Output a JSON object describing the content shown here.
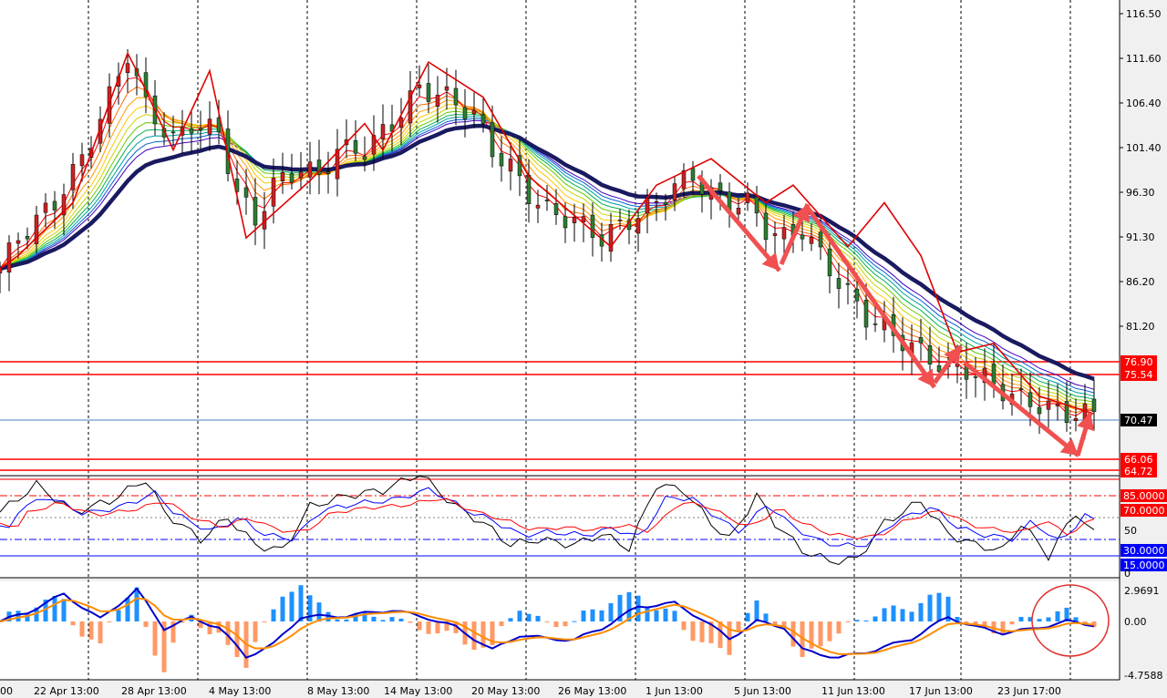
{
  "chart_data": {
    "type": "candlestick",
    "panels": {
      "price": {
        "ylim": [
          66.06,
          116.5
        ],
        "y_ticks": [
          "116.50",
          "111.60",
          "106.40",
          "101.40",
          "96.30",
          "91.30",
          "86.20",
          "81.20",
          "76.90",
          "75.54",
          "70.47",
          "66.06",
          "64.72"
        ],
        "current_price": "70.47",
        "horizontal_levels": [
          {
            "value": 76.9,
            "label": "76.90",
            "color": "#ff0000"
          },
          {
            "value": 75.54,
            "label": "75.54",
            "color": "#ff0000"
          },
          {
            "value": 66.06,
            "label": "66.06",
            "color": "#ff0000"
          },
          {
            "value": 64.72,
            "label": "64.72",
            "color": "#ff0000"
          }
        ],
        "bid_line": {
          "value": 70.47,
          "color": "#4a7fc0"
        },
        "ema_ribbon_colors": [
          "#ff0000",
          "#ff6a00",
          "#ff9a00",
          "#ffc800",
          "#c8d400",
          "#66c800",
          "#00b050",
          "#00a0a0",
          "#0060d0",
          "#4000c0"
        ],
        "slow_ma_color": "#1a1a60"
      },
      "stochastic": {
        "ylim": [
          0,
          100
        ],
        "levels": [
          {
            "value": 85,
            "label": "85.0000",
            "color": "#ff0000"
          },
          {
            "value": 70,
            "label": "70.0000",
            "color": "#ff0000"
          },
          {
            "value": 50,
            "label": "50",
            "color": "#808080"
          },
          {
            "value": 30,
            "label": "30.0000",
            "color": "#0000ff"
          },
          {
            "value": 15,
            "label": "15.0000",
            "color": "#0000ff"
          }
        ],
        "bottom_label": "0",
        "line_colors": [
          "#000000",
          "#0000ff",
          "#ff0000"
        ]
      },
      "macd": {
        "ylim": [
          -4.7588,
          2.9691
        ],
        "tick_labels": [
          "2.9691",
          "0.00",
          "-4.7588"
        ],
        "line_colors": [
          "#0000cc",
          "#ff8c00"
        ],
        "hist_pos_color": "#1e90ff",
        "hist_neg_color": "#ff9966"
      }
    },
    "x_tick_labels": [
      "00",
      "22 Apr 13:00",
      "28 Apr 13:00",
      "4 May 13:00",
      "8 May 13:00",
      "14 May 13:00",
      "20 May 13:00",
      "26 May 13:00",
      "1 Jun 13:00",
      "5 Jun 13:00",
      "11 Jun 13:00",
      "17 Jun 13:00",
      "23 Jun 17:00"
    ],
    "zigzag": [
      [
        0,
        87.5
      ],
      [
        2,
        89
      ],
      [
        8,
        95
      ],
      [
        14,
        112
      ],
      [
        15,
        110
      ],
      [
        19,
        101
      ],
      [
        23,
        110
      ],
      [
        27,
        91
      ],
      [
        34,
        97.5
      ],
      [
        40,
        104
      ],
      [
        42,
        101
      ],
      [
        47,
        111
      ],
      [
        53,
        107
      ],
      [
        58,
        98
      ],
      [
        67,
        90
      ],
      [
        72,
        97
      ],
      [
        78,
        100
      ],
      [
        84,
        95
      ],
      [
        87,
        97
      ],
      [
        93,
        90
      ],
      [
        97,
        95
      ],
      [
        101,
        89
      ],
      [
        105,
        78
      ],
      [
        109,
        79
      ],
      [
        114,
        73
      ],
      [
        120,
        71
      ]
    ],
    "close_series_knots": [
      [
        0,
        87.5
      ],
      [
        2,
        91
      ],
      [
        6,
        95
      ],
      [
        9,
        100
      ],
      [
        12,
        107
      ],
      [
        14,
        112
      ],
      [
        16,
        106
      ],
      [
        19,
        102
      ],
      [
        21,
        104
      ],
      [
        24,
        103
      ],
      [
        26,
        96
      ],
      [
        28,
        93
      ],
      [
        30,
        97
      ],
      [
        33,
        99
      ],
      [
        35,
        98
      ],
      [
        37,
        101
      ],
      [
        40,
        101
      ],
      [
        43,
        104
      ],
      [
        46,
        108
      ],
      [
        49,
        107
      ],
      [
        52,
        105
      ],
      [
        54,
        101
      ],
      [
        56,
        99
      ],
      [
        58,
        96
      ],
      [
        60,
        94
      ],
      [
        63,
        93
      ],
      [
        66,
        91
      ],
      [
        69,
        93
      ],
      [
        72,
        95
      ],
      [
        74,
        97
      ],
      [
        76,
        98
      ],
      [
        78,
        96
      ],
      [
        80,
        95
      ],
      [
        82,
        95
      ],
      [
        84,
        92
      ],
      [
        86,
        91
      ],
      [
        88,
        92
      ],
      [
        90,
        89
      ],
      [
        92,
        86
      ],
      [
        95,
        82
      ],
      [
        98,
        80
      ],
      [
        101,
        78
      ],
      [
        104,
        76
      ],
      [
        106,
        76
      ],
      [
        108,
        75
      ],
      [
        111,
        73
      ],
      [
        114,
        72
      ],
      [
        117,
        71
      ],
      [
        120,
        71
      ]
    ],
    "stoch_main_knots": [
      [
        0,
        55
      ],
      [
        4,
        80
      ],
      [
        6,
        68
      ],
      [
        8,
        55
      ],
      [
        12,
        65
      ],
      [
        16,
        85
      ],
      [
        18,
        55
      ],
      [
        22,
        30
      ],
      [
        25,
        50
      ],
      [
        28,
        25
      ],
      [
        31,
        20
      ],
      [
        34,
        60
      ],
      [
        38,
        70
      ],
      [
        42,
        75
      ],
      [
        46,
        90
      ],
      [
        50,
        60
      ],
      [
        53,
        45
      ],
      [
        56,
        25
      ],
      [
        59,
        30
      ],
      [
        63,
        25
      ],
      [
        66,
        35
      ],
      [
        69,
        22
      ],
      [
        72,
        80
      ],
      [
        75,
        75
      ],
      [
        78,
        45
      ],
      [
        80,
        30
      ],
      [
        83,
        70
      ],
      [
        85,
        45
      ],
      [
        88,
        20
      ],
      [
        91,
        10
      ],
      [
        94,
        12
      ],
      [
        97,
        45
      ],
      [
        101,
        65
      ],
      [
        104,
        35
      ],
      [
        107,
        25
      ],
      [
        110,
        20
      ],
      [
        112,
        45
      ],
      [
        115,
        15
      ],
      [
        118,
        55
      ],
      [
        120,
        35
      ]
    ],
    "macd_main_knots": [
      [
        0,
        0
      ],
      [
        3,
        0.8
      ],
      [
        7,
        2.4
      ],
      [
        11,
        0.2
      ],
      [
        15,
        2.8
      ],
      [
        18,
        -0.6
      ],
      [
        21,
        0.3
      ],
      [
        24,
        -0.5
      ],
      [
        27,
        -3.1
      ],
      [
        30,
        -2
      ],
      [
        33,
        0.4
      ],
      [
        38,
        0.5
      ],
      [
        43,
        1
      ],
      [
        47,
        0.3
      ],
      [
        50,
        -0.5
      ],
      [
        54,
        -2.5
      ],
      [
        57,
        -1.2
      ],
      [
        60,
        -1.5
      ],
      [
        63,
        -1.6
      ],
      [
        66,
        -0.6
      ],
      [
        70,
        1.3
      ],
      [
        74,
        1.6
      ],
      [
        77,
        0.2
      ],
      [
        80,
        -1.5
      ],
      [
        83,
        0
      ],
      [
        86,
        -0.5
      ],
      [
        88,
        -2.5
      ],
      [
        92,
        -3.2
      ],
      [
        96,
        -2.5
      ],
      [
        100,
        -1.5
      ],
      [
        104,
        0.4
      ],
      [
        107,
        -0.5
      ],
      [
        110,
        -1
      ],
      [
        113,
        -0.7
      ],
      [
        117,
        0
      ],
      [
        120,
        -0.3
      ]
    ]
  }
}
